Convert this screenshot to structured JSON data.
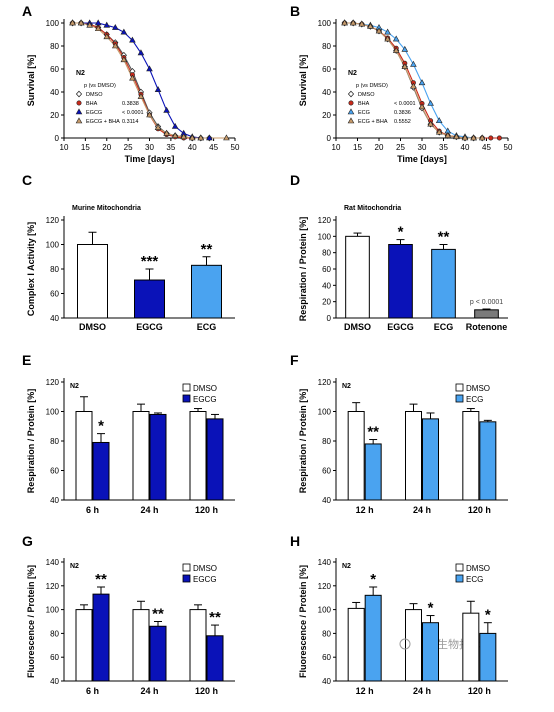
{
  "colors": {
    "dmso": "#ffffff",
    "dark_blue": "#0a12b8",
    "light_blue": "#4aa3f0",
    "red": "#cc2a1a",
    "tan": "#c79a6a",
    "gray": "#7a7a7a",
    "axis": "#000000"
  },
  "watermark": "中国生物技术网",
  "chart_data": [
    {
      "panel": "A",
      "type": "line",
      "xlabel": "Time [days]",
      "ylabel": "Survival [%]",
      "xlim": [
        10,
        50
      ],
      "ylim": [
        0,
        100
      ],
      "xticks": [
        10,
        15,
        20,
        25,
        30,
        35,
        40,
        45,
        50
      ],
      "yticks": [
        0,
        20,
        40,
        60,
        80,
        100
      ],
      "legend_title": "N2",
      "legend_subtitle": "p (vs DMSO)",
      "series": [
        {
          "name": "DMSO",
          "pvalue": "",
          "color": "#ffffff",
          "marker": "diamond",
          "x": [
            12,
            14,
            16,
            18,
            20,
            22,
            24,
            26,
            28,
            30,
            32,
            34,
            36,
            38,
            40,
            42,
            44
          ],
          "y": [
            100,
            100,
            99,
            96,
            90,
            83,
            72,
            58,
            40,
            22,
            10,
            4,
            2,
            1,
            0,
            0,
            0
          ]
        },
        {
          "name": "BHA",
          "pvalue": "0.3838",
          "color": "#cc2a1a",
          "marker": "circle",
          "x": [
            12,
            14,
            16,
            18,
            20,
            22,
            24,
            26,
            28,
            30,
            32,
            34,
            36,
            38,
            40
          ],
          "y": [
            100,
            100,
            99,
            96,
            90,
            82,
            70,
            55,
            38,
            20,
            8,
            3,
            1,
            0,
            0
          ]
        },
        {
          "name": "EGCG",
          "pvalue": "< 0.0001",
          "color": "#0a12b8",
          "marker": "triangle",
          "x": [
            12,
            14,
            16,
            18,
            20,
            22,
            24,
            26,
            28,
            30,
            32,
            34,
            36,
            38,
            40,
            42,
            44
          ],
          "y": [
            100,
            100,
            100,
            100,
            98,
            96,
            92,
            85,
            74,
            60,
            42,
            24,
            10,
            4,
            1,
            0,
            0
          ]
        },
        {
          "name": "EGCG + BHA",
          "pvalue": "0.3114",
          "color": "#c79a6a",
          "marker": "triangle",
          "x": [
            12,
            14,
            16,
            18,
            20,
            22,
            24,
            26,
            28,
            30,
            32,
            34,
            36,
            38,
            40,
            42,
            48
          ],
          "y": [
            100,
            100,
            98,
            95,
            88,
            80,
            68,
            52,
            36,
            20,
            9,
            4,
            2,
            1,
            0,
            0,
            0
          ]
        }
      ]
    },
    {
      "panel": "B",
      "type": "line",
      "xlabel": "Time [days]",
      "ylabel": "Survival [%]",
      "xlim": [
        10,
        50
      ],
      "ylim": [
        0,
        100
      ],
      "xticks": [
        10,
        15,
        20,
        25,
        30,
        35,
        40,
        45,
        50
      ],
      "yticks": [
        0,
        20,
        40,
        60,
        80,
        100
      ],
      "legend_title": "N2",
      "legend_subtitle": "p (vs DMSO)",
      "series": [
        {
          "name": "DMSO",
          "pvalue": "",
          "color": "#ffffff",
          "marker": "diamond",
          "x": [
            12,
            14,
            16,
            18,
            20,
            22,
            24,
            26,
            28,
            30,
            32,
            34,
            36,
            38,
            40,
            42,
            44
          ],
          "y": [
            100,
            100,
            99,
            97,
            93,
            86,
            76,
            62,
            44,
            26,
            12,
            5,
            2,
            1,
            0,
            0,
            0
          ]
        },
        {
          "name": "BHA",
          "pvalue": "< 0.0001",
          "color": "#cc2a1a",
          "marker": "circle",
          "x": [
            12,
            14,
            16,
            18,
            20,
            22,
            24,
            26,
            28,
            30,
            32,
            34,
            36,
            38,
            40,
            42,
            44,
            46,
            48
          ],
          "y": [
            100,
            100,
            99,
            97,
            93,
            87,
            78,
            65,
            48,
            30,
            15,
            6,
            2,
            1,
            0,
            0,
            0,
            0,
            0
          ]
        },
        {
          "name": "ECG",
          "pvalue": "0.3836",
          "color": "#4aa3f0",
          "marker": "triangle",
          "x": [
            12,
            14,
            16,
            18,
            20,
            22,
            24,
            26,
            28,
            30,
            32,
            34,
            36,
            38,
            40,
            42
          ],
          "y": [
            100,
            100,
            99,
            98,
            96,
            92,
            86,
            77,
            64,
            48,
            30,
            15,
            6,
            2,
            1,
            0
          ]
        },
        {
          "name": "ECG + BHA",
          "pvalue": "0.5552",
          "color": "#c79a6a",
          "marker": "triangle",
          "x": [
            12,
            14,
            16,
            18,
            20,
            22,
            24,
            26,
            28,
            30,
            32,
            34,
            36,
            38,
            40,
            42,
            44
          ],
          "y": [
            100,
            100,
            99,
            97,
            93,
            86,
            76,
            62,
            45,
            27,
            12,
            5,
            2,
            1,
            0,
            0,
            0
          ]
        }
      ]
    },
    {
      "panel": "C",
      "type": "bar",
      "title": "Murine Mitochondria",
      "ylabel": "Complex I Activity [%]",
      "ylim": [
        40,
        120
      ],
      "yticks": [
        40,
        60,
        80,
        100,
        120
      ],
      "categories": [
        "DMSO",
        "EGCG",
        "ECG"
      ],
      "values": [
        100,
        71,
        83
      ],
      "errors": [
        10,
        9,
        7
      ],
      "colors": [
        "#ffffff",
        "#0a12b8",
        "#4aa3f0"
      ],
      "annotations": [
        "",
        "***",
        "**"
      ]
    },
    {
      "panel": "D",
      "type": "bar",
      "title": "Rat Mitochondria",
      "ylabel": "Respiration / Protein [%]",
      "ylim": [
        0,
        120
      ],
      "yticks": [
        0,
        20,
        40,
        60,
        80,
        100,
        120
      ],
      "categories": [
        "DMSO",
        "EGCG",
        "ECG",
        "Rotenone"
      ],
      "values": [
        100,
        90,
        84,
        10
      ],
      "errors": [
        4,
        6,
        6,
        1
      ],
      "colors": [
        "#ffffff",
        "#0a12b8",
        "#4aa3f0",
        "#7a7a7a"
      ],
      "annotations": [
        "",
        "*",
        "**",
        "p < 0.0001"
      ]
    },
    {
      "panel": "E",
      "type": "bar",
      "strain": "N2",
      "ylabel": "Respiration / Protein [%]",
      "ylim": [
        40,
        120
      ],
      "yticks": [
        40,
        60,
        80,
        100,
        120
      ],
      "categories": [
        "6 h",
        "24 h",
        "120 h"
      ],
      "series": [
        {
          "name": "DMSO",
          "color": "#ffffff",
          "values": [
            100,
            100,
            100
          ],
          "errors": [
            10,
            5,
            2
          ],
          "annotations": [
            "",
            "",
            ""
          ]
        },
        {
          "name": "EGCG",
          "color": "#0a12b8",
          "values": [
            79,
            98,
            95
          ],
          "errors": [
            6,
            1,
            3
          ],
          "annotations": [
            "*",
            "",
            ""
          ]
        }
      ]
    },
    {
      "panel": "F",
      "type": "bar",
      "strain": "N2",
      "ylabel": "Respiration / Protein [%]",
      "ylim": [
        40,
        120
      ],
      "yticks": [
        40,
        60,
        80,
        100,
        120
      ],
      "categories": [
        "12 h",
        "24 h",
        "120 h"
      ],
      "series": [
        {
          "name": "DMSO",
          "color": "#ffffff",
          "values": [
            100,
            100,
            100
          ],
          "errors": [
            6,
            5,
            2
          ],
          "annotations": [
            "",
            "",
            ""
          ]
        },
        {
          "name": "ECG",
          "color": "#4aa3f0",
          "values": [
            78,
            95,
            93
          ],
          "errors": [
            3,
            4,
            1
          ],
          "annotations": [
            "**",
            "",
            ""
          ]
        }
      ]
    },
    {
      "panel": "G",
      "type": "bar",
      "strain": "N2",
      "ylabel": "Fluorescence / Protein [%]",
      "ylim": [
        40,
        140
      ],
      "yticks": [
        40,
        60,
        80,
        100,
        120,
        140
      ],
      "categories": [
        "6 h",
        "24 h",
        "120 h"
      ],
      "series": [
        {
          "name": "DMSO",
          "color": "#ffffff",
          "values": [
            100,
            100,
            100
          ],
          "errors": [
            4,
            7,
            4
          ],
          "annotations": [
            "",
            "",
            ""
          ]
        },
        {
          "name": "EGCG",
          "color": "#0a12b8",
          "values": [
            113,
            86,
            78
          ],
          "errors": [
            6,
            4,
            9
          ],
          "annotations": [
            "**",
            "**",
            "**"
          ]
        }
      ]
    },
    {
      "panel": "H",
      "type": "bar",
      "strain": "N2",
      "ylabel": "Fluorescence / Protein [%]",
      "ylim": [
        40,
        140
      ],
      "yticks": [
        40,
        60,
        80,
        100,
        120,
        140
      ],
      "categories": [
        "12 h",
        "24 h",
        "120 h"
      ],
      "series": [
        {
          "name": "DMSO",
          "color": "#ffffff",
          "values": [
            101,
            100,
            97
          ],
          "errors": [
            5,
            5,
            10
          ],
          "annotations": [
            "",
            "",
            ""
          ]
        },
        {
          "name": "ECG",
          "color": "#4aa3f0",
          "values": [
            112,
            89,
            80
          ],
          "errors": [
            7,
            6,
            9
          ],
          "annotations": [
            "*",
            "*",
            "*"
          ]
        }
      ]
    }
  ]
}
